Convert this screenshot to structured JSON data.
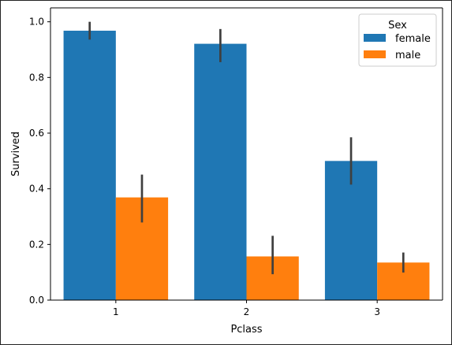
{
  "chart_data": {
    "type": "bar",
    "xlabel": "Pclass",
    "ylabel": "Survived",
    "categories": [
      "1",
      "2",
      "3"
    ],
    "ylim": [
      0.0,
      1.05
    ],
    "yticks": [
      "0.0",
      "0.2",
      "0.4",
      "0.6",
      "0.8",
      "1.0"
    ],
    "legend": {
      "title": "Sex",
      "placement": "top-right"
    },
    "series": [
      {
        "name": "female",
        "color": "#1f77b4",
        "values": [
          0.968,
          0.921,
          0.5
        ],
        "ci_low": [
          0.936,
          0.855,
          0.415
        ],
        "ci_high": [
          1.0,
          0.974,
          0.585
        ]
      },
      {
        "name": "male",
        "color": "#ff7f0e",
        "values": [
          0.369,
          0.157,
          0.135
        ],
        "ci_low": [
          0.279,
          0.093,
          0.099
        ],
        "ci_high": [
          0.451,
          0.231,
          0.171
        ]
      }
    ],
    "errorbar_color": "#3f3f3f",
    "grid": false
  }
}
